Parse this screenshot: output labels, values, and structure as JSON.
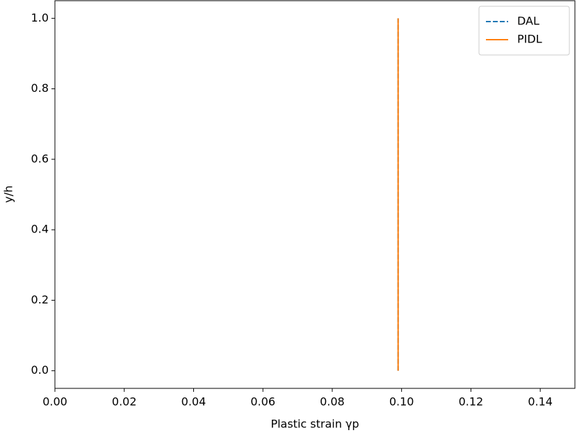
{
  "chart_data": {
    "type": "line",
    "xlabel": "Plastic strain γp",
    "ylabel": "y/h",
    "series": [
      {
        "name": "DAL",
        "color": "#1f77b4",
        "linestyle": "dashed",
        "x": [
          0.099,
          0.099
        ],
        "y": [
          0,
          1
        ]
      },
      {
        "name": "PIDL",
        "color": "#ff7f0e",
        "linestyle": "solid",
        "x": [
          0.099,
          0.099
        ],
        "y": [
          0,
          1
        ]
      }
    ],
    "xlim": [
      0,
      0.15
    ],
    "ylim": [
      -0.05,
      1.05
    ],
    "xticks": [
      {
        "value": 0,
        "label": "0.00"
      },
      {
        "value": 0.02,
        "label": "0.02"
      },
      {
        "value": 0.04,
        "label": "0.04"
      },
      {
        "value": 0.06,
        "label": "0.06"
      },
      {
        "value": 0.08,
        "label": "0.08"
      },
      {
        "value": 0.1,
        "label": "0.10"
      },
      {
        "value": 0.12,
        "label": "0.12"
      },
      {
        "value": 0.14,
        "label": "0.14"
      }
    ],
    "yticks": [
      {
        "value": 0,
        "label": "0.0"
      },
      0.2,
      0.4,
      0.6,
      0.8,
      {
        "value": 1,
        "label": "1.0"
      }
    ],
    "grid": false,
    "legend": "upper right"
  }
}
